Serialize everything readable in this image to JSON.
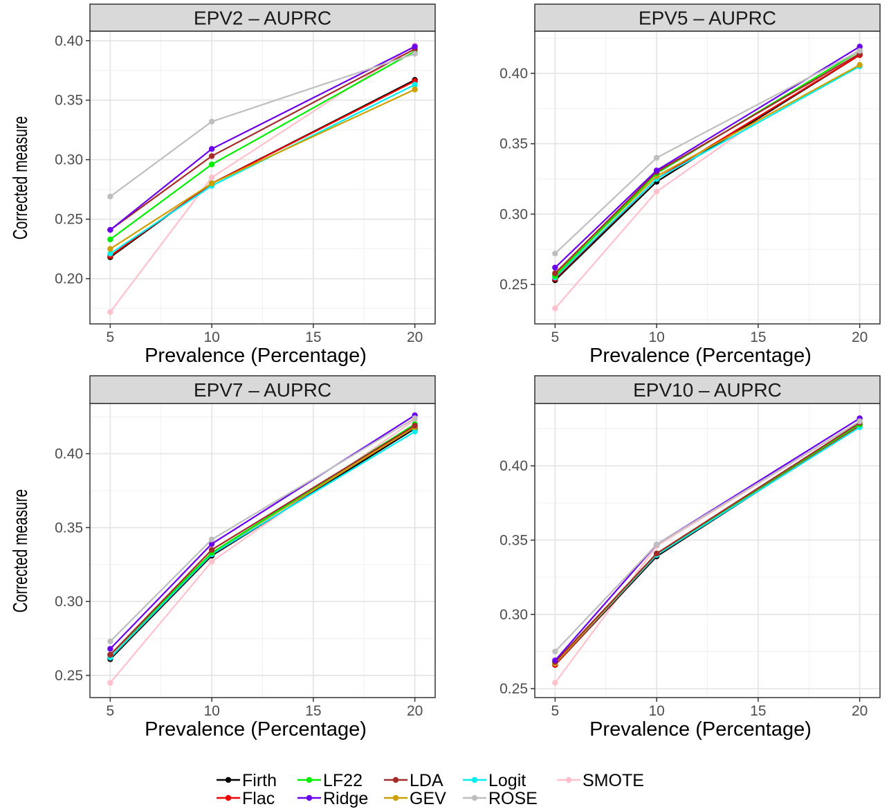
{
  "legend": {
    "items": [
      {
        "name": "Firth",
        "color": "#000000"
      },
      {
        "name": "LF22",
        "color": "#00EE00"
      },
      {
        "name": "LDA",
        "color": "#A52A2A"
      },
      {
        "name": "Logit",
        "color": "#00EEEE"
      },
      {
        "name": "SMOTE",
        "color": "#FFC0CB"
      },
      {
        "name": "Flac",
        "color": "#EE0000"
      },
      {
        "name": "Ridge",
        "color": "#6A00EE"
      },
      {
        "name": "GEV",
        "color": "#CDA000"
      },
      {
        "name": "ROSE",
        "color": "#BEBEBE"
      }
    ],
    "placement": "bottom"
  },
  "chart_data": [
    {
      "type": "line",
      "title": "EPV2 – AUPRC",
      "xlabel": "Prevalence (Percentage)",
      "ylabel": "Corrected measure",
      "x": [
        5,
        10,
        20
      ],
      "xlim": [
        4.0,
        21.0
      ],
      "ylim": [
        0.162,
        0.408
      ],
      "xticks": [
        5,
        10,
        15,
        20
      ],
      "yticks": [
        0.2,
        0.25,
        0.3,
        0.35,
        0.4
      ],
      "ytick_labels": [
        "0.20",
        "0.25",
        "0.30",
        "0.35",
        "0.40"
      ],
      "grid": true,
      "series": [
        {
          "name": "SMOTE",
          "values": [
            0.172,
            0.285,
            0.396
          ]
        },
        {
          "name": "Firth",
          "values": [
            0.218,
            0.28,
            0.367
          ]
        },
        {
          "name": "Flac",
          "values": [
            0.219,
            0.28,
            0.366
          ]
        },
        {
          "name": "Logit",
          "values": [
            0.221,
            0.278,
            0.363
          ]
        },
        {
          "name": "GEV",
          "values": [
            0.225,
            0.28,
            0.359
          ]
        },
        {
          "name": "LF22",
          "values": [
            0.233,
            0.296,
            0.391
          ]
        },
        {
          "name": "LDA",
          "values": [
            0.241,
            0.303,
            0.393
          ]
        },
        {
          "name": "Ridge",
          "values": [
            0.241,
            0.309,
            0.395
          ]
        },
        {
          "name": "ROSE",
          "values": [
            0.269,
            0.332,
            0.389
          ]
        }
      ]
    },
    {
      "type": "line",
      "title": "EPV5 – AUPRC",
      "xlabel": "Prevalence (Percentage)",
      "ylabel": "",
      "x": [
        5,
        10,
        20
      ],
      "xlim": [
        4.0,
        21.0
      ],
      "ylim": [
        0.222,
        0.43
      ],
      "xticks": [
        5,
        10,
        15,
        20
      ],
      "yticks": [
        0.25,
        0.3,
        0.35,
        0.4
      ],
      "ytick_labels": [
        "0.25",
        "0.30",
        "0.35",
        "0.40"
      ],
      "grid": true,
      "series": [
        {
          "name": "SMOTE",
          "values": [
            0.233,
            0.316,
            0.417
          ]
        },
        {
          "name": "Firth",
          "values": [
            0.253,
            0.323,
            0.413
          ]
        },
        {
          "name": "Flac",
          "values": [
            0.254,
            0.325,
            0.413
          ]
        },
        {
          "name": "Logit",
          "values": [
            0.255,
            0.325,
            0.405
          ]
        },
        {
          "name": "GEV",
          "values": [
            0.257,
            0.327,
            0.406
          ]
        },
        {
          "name": "LF22",
          "values": [
            0.256,
            0.329,
            0.416
          ]
        },
        {
          "name": "LDA",
          "values": [
            0.258,
            0.33,
            0.414
          ]
        },
        {
          "name": "Ridge",
          "values": [
            0.262,
            0.331,
            0.419
          ]
        },
        {
          "name": "ROSE",
          "values": [
            0.272,
            0.34,
            0.416
          ]
        }
      ]
    },
    {
      "type": "line",
      "title": "EPV7 – AUPRC",
      "xlabel": "Prevalence (Percentage)",
      "ylabel": "Corrected measure",
      "x": [
        5,
        10,
        20
      ],
      "xlim": [
        4.0,
        21.0
      ],
      "ylim": [
        0.235,
        0.434
      ],
      "xticks": [
        5,
        10,
        15,
        20
      ],
      "yticks": [
        0.25,
        0.3,
        0.35,
        0.4
      ],
      "ytick_labels": [
        "0.25",
        "0.30",
        "0.35",
        "0.40"
      ],
      "grid": true,
      "series": [
        {
          "name": "SMOTE",
          "values": [
            0.245,
            0.327,
            0.423
          ]
        },
        {
          "name": "Firth",
          "values": [
            0.261,
            0.331,
            0.417
          ]
        },
        {
          "name": "Flac",
          "values": [
            0.262,
            0.333,
            0.418
          ]
        },
        {
          "name": "Logit",
          "values": [
            0.262,
            0.332,
            0.415
          ]
        },
        {
          "name": "GEV",
          "values": [
            0.264,
            0.333,
            0.418
          ]
        },
        {
          "name": "LF22",
          "values": [
            0.264,
            0.333,
            0.42
          ]
        },
        {
          "name": "LDA",
          "values": [
            0.264,
            0.335,
            0.419
          ]
        },
        {
          "name": "Ridge",
          "values": [
            0.268,
            0.339,
            0.426
          ]
        },
        {
          "name": "ROSE",
          "values": [
            0.273,
            0.342,
            0.424
          ]
        }
      ]
    },
    {
      "type": "line",
      "title": "EPV10 – AUPRC",
      "xlabel": "Prevalence (Percentage)",
      "ylabel": "",
      "x": [
        5,
        10,
        20
      ],
      "xlim": [
        4.0,
        21.0
      ],
      "ylim": [
        0.244,
        0.442
      ],
      "xticks": [
        5,
        10,
        15,
        20
      ],
      "yticks": [
        0.25,
        0.3,
        0.35,
        0.4
      ],
      "ytick_labels": [
        "0.25",
        "0.30",
        "0.35",
        "0.40"
      ],
      "grid": true,
      "series": [
        {
          "name": "SMOTE",
          "values": [
            0.254,
            0.346,
            0.43
          ]
        },
        {
          "name": "Firth",
          "values": [
            0.266,
            0.339,
            0.427
          ]
        },
        {
          "name": "Flac",
          "values": [
            0.266,
            0.34,
            0.427
          ]
        },
        {
          "name": "Logit",
          "values": [
            0.267,
            0.34,
            0.426
          ]
        },
        {
          "name": "GEV",
          "values": [
            0.267,
            0.341,
            0.428
          ]
        },
        {
          "name": "LF22",
          "values": [
            0.268,
            0.341,
            0.428
          ]
        },
        {
          "name": "LDA",
          "values": [
            0.268,
            0.341,
            0.429
          ]
        },
        {
          "name": "Ridge",
          "values": [
            0.269,
            0.347,
            0.432
          ]
        },
        {
          "name": "ROSE",
          "values": [
            0.275,
            0.347,
            0.43
          ]
        }
      ]
    }
  ]
}
